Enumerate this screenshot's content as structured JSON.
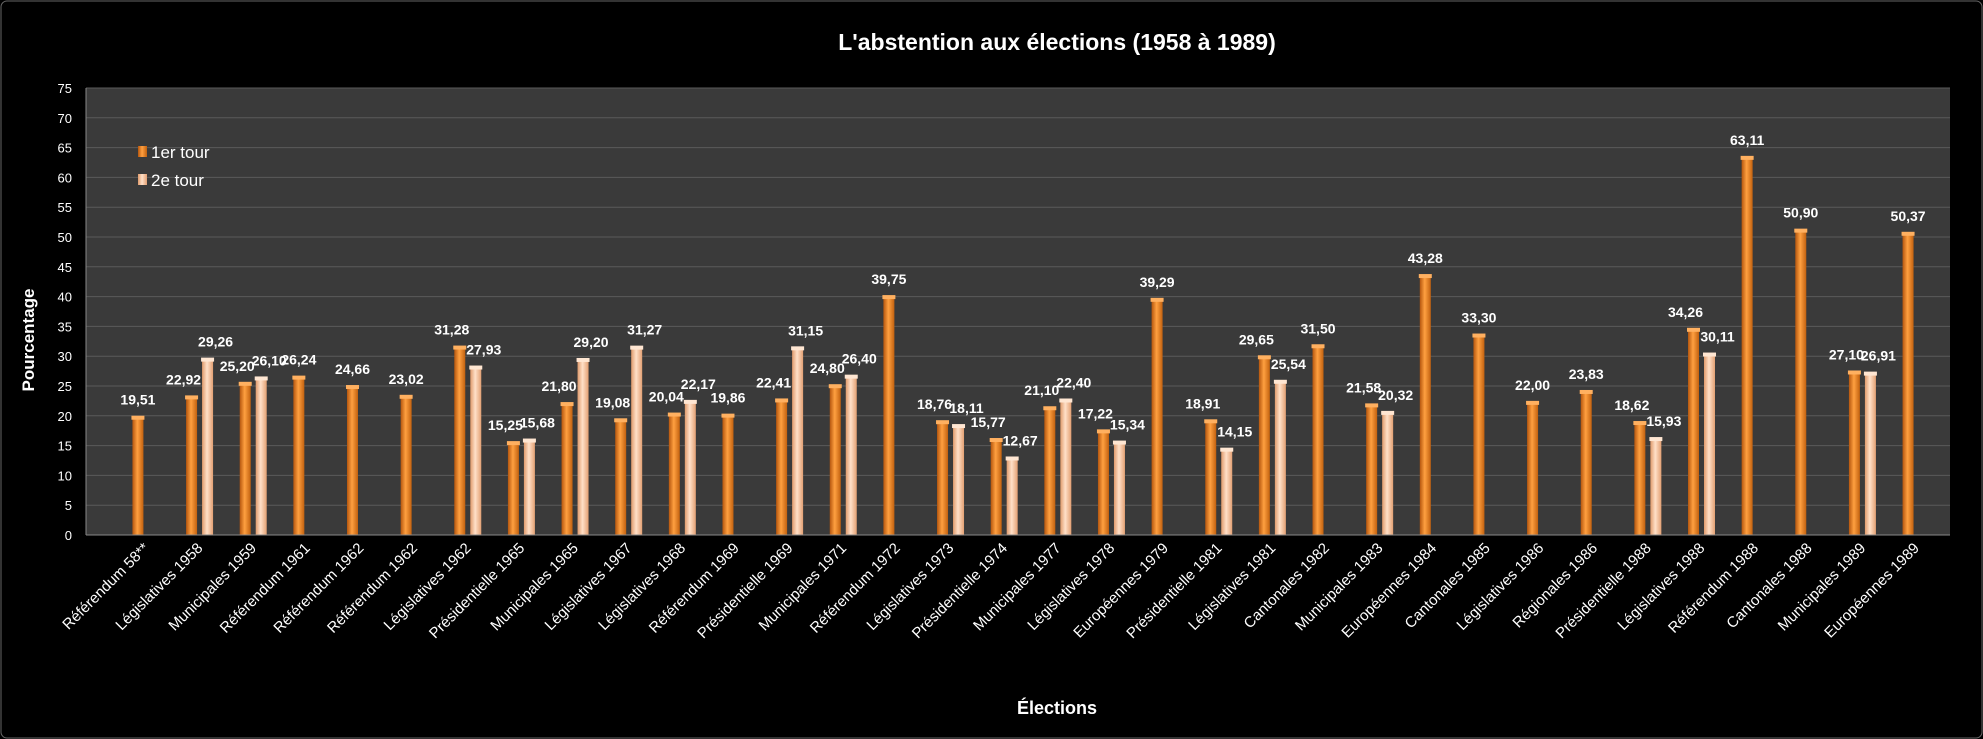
{
  "chart_data": {
    "type": "bar",
    "title": "L'abstention aux élections (1958 à 1989)",
    "xlabel": "Élections",
    "ylabel": "Pourcentage",
    "ylim": [
      0,
      75
    ],
    "ytick_step": 5,
    "grid": true,
    "legend_position": "top-left",
    "colors": {
      "background": "#000000",
      "plot_area": "#3a3a3a",
      "gridline": "#5a5a5a",
      "series1": "#e8801e",
      "series2": "#f4b183",
      "text": "#ffffff"
    },
    "categories": [
      "Référendum 58**",
      "Législatives 1958",
      "Municipales 1959",
      "Référendum 1961",
      "Référendum 1962",
      "Référendum 1962",
      "Législatives 1962",
      "Présidentielle 1965",
      "Municipales 1965",
      "Législatives 1967",
      "Législatives 1968",
      "Référendum 1969",
      "Présidentielle 1969",
      "Municipales 1971",
      "Référendum 1972",
      "Législatives 1973",
      "Présidentielle 1974",
      "Municipales 1977",
      "Législatives 1978",
      "Européennes 1979",
      "Présidentielle 1981",
      "Législatives 1981",
      "Cantonales 1982",
      "Municipales 1983",
      "Européennes 1984",
      "Cantonales 1985",
      "Législatives 1986",
      "Régionales 1986",
      "Présidentielle 1988",
      "Législatives 1988",
      "Référendum 1988",
      "Cantonales 1988",
      "Municipales 1989",
      "Européennes 1989"
    ],
    "series": [
      {
        "name": "1er tour",
        "values": [
          19.51,
          22.92,
          25.2,
          26.24,
          24.66,
          23.02,
          31.28,
          15.25,
          21.8,
          19.08,
          20.04,
          19.86,
          22.41,
          24.8,
          39.75,
          18.76,
          15.77,
          21.1,
          17.22,
          39.29,
          18.91,
          29.65,
          31.5,
          21.58,
          43.28,
          33.3,
          22.0,
          23.83,
          18.62,
          34.26,
          63.11,
          50.9,
          27.1,
          50.37
        ],
        "labels": [
          "19,51",
          "22,92",
          "25,20",
          "26,24",
          "24,66",
          "23,02",
          "31,28",
          "15,25",
          "21,80",
          "19,08",
          "20,04",
          "19,86",
          "22,41",
          "24,80",
          "39,75",
          "18,76",
          "15,77",
          "21,10",
          "17,22",
          "39,29",
          "18,91",
          "29,65",
          "31,50",
          "21,58",
          "43,28",
          "33,30",
          "22,00",
          "23,83",
          "18,62",
          "34,26",
          "63,11",
          "50,90",
          "27,10",
          "50,37"
        ]
      },
      {
        "name": "2e tour",
        "values": [
          null,
          29.26,
          26.1,
          null,
          null,
          null,
          27.93,
          15.68,
          29.2,
          31.27,
          22.17,
          null,
          31.15,
          26.4,
          null,
          18.11,
          12.67,
          22.4,
          15.34,
          null,
          14.15,
          25.54,
          null,
          20.32,
          null,
          null,
          null,
          null,
          15.93,
          30.11,
          null,
          null,
          26.91,
          null
        ],
        "labels": [
          null,
          "29,26",
          "26,10",
          null,
          null,
          null,
          "27,93",
          "15,68",
          "29,20",
          "31,27",
          "22,17",
          null,
          "31,15",
          "26,40",
          null,
          "18,11",
          "12,67",
          "22,40",
          "15,34",
          null,
          "14,15",
          "25,54",
          null,
          "20,32",
          null,
          null,
          null,
          null,
          "15,93",
          "30,11",
          null,
          null,
          "26,91",
          null
        ]
      }
    ]
  }
}
